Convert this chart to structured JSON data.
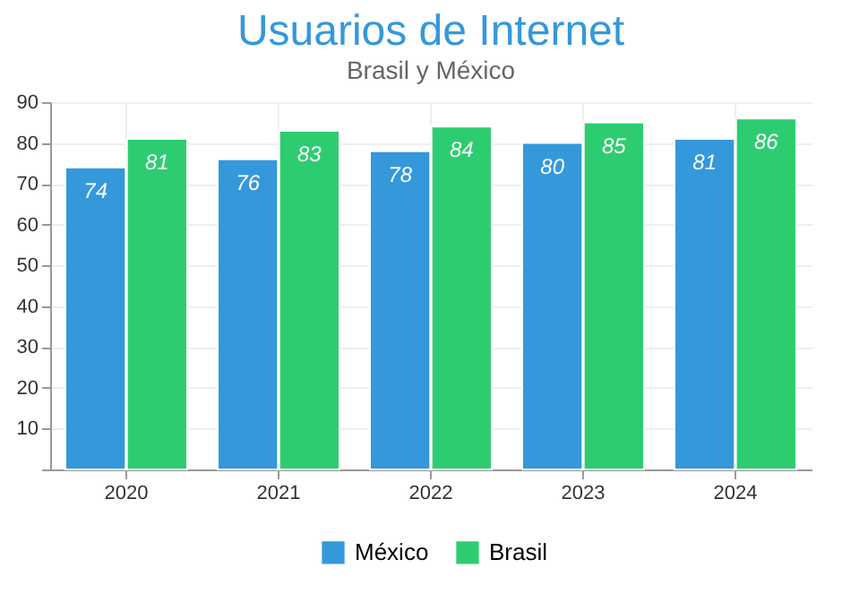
{
  "chart_data": {
    "type": "bar",
    "title": "Usuarios de Internet",
    "subtitle": "Brasil y México",
    "categories": [
      "2020",
      "2021",
      "2022",
      "2023",
      "2024"
    ],
    "series": [
      {
        "name": "México",
        "color": "#3498db",
        "values": [
          74,
          76,
          78,
          80,
          81
        ]
      },
      {
        "name": "Brasil",
        "color": "#2ecc71",
        "values": [
          81,
          83,
          84,
          85,
          86
        ]
      }
    ],
    "ylim": [
      0,
      90
    ],
    "yticks": [
      {
        "value": 0,
        "label": null
      },
      10,
      20,
      30,
      40,
      50,
      60,
      70,
      80,
      90
    ],
    "grid": true,
    "legend": "bottom",
    "data_labels": true
  }
}
